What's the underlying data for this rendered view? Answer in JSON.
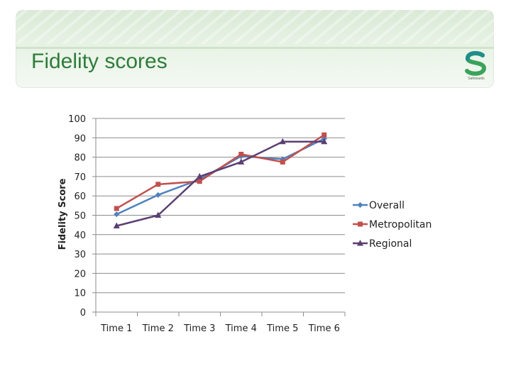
{
  "header": {
    "title": "Fidelity scores",
    "logo_text": "Safewards"
  },
  "colors": {
    "title": "#2e7d3a",
    "logo_green": "#3aa35a",
    "logo_teal": "#1f8e8a"
  },
  "chart_data": {
    "type": "line",
    "title": "",
    "xlabel": "",
    "ylabel": "Fidelity Score",
    "categories": [
      "Time 1",
      "Time 2",
      "Time 3",
      "Time 4",
      "Time 5",
      "Time 6"
    ],
    "ylim": [
      0,
      100
    ],
    "yticks": [
      0,
      10,
      20,
      30,
      40,
      50,
      60,
      70,
      80,
      90,
      100
    ],
    "grid": true,
    "legend_position": "right",
    "series": [
      {
        "name": "Overall",
        "color": "#4f81bd",
        "marker": "diamond",
        "values": [
          50.5,
          60.5,
          68.5,
          80.5,
          79,
          89.5
        ]
      },
      {
        "name": "Metropolitan",
        "color": "#c0504d",
        "marker": "square",
        "values": [
          53.5,
          66,
          67.5,
          81.5,
          77.5,
          91.5
        ]
      },
      {
        "name": "Regional",
        "color": "#5b3f73",
        "marker": "triangle",
        "values": [
          44.5,
          50,
          70,
          77.5,
          88,
          88
        ]
      }
    ]
  }
}
